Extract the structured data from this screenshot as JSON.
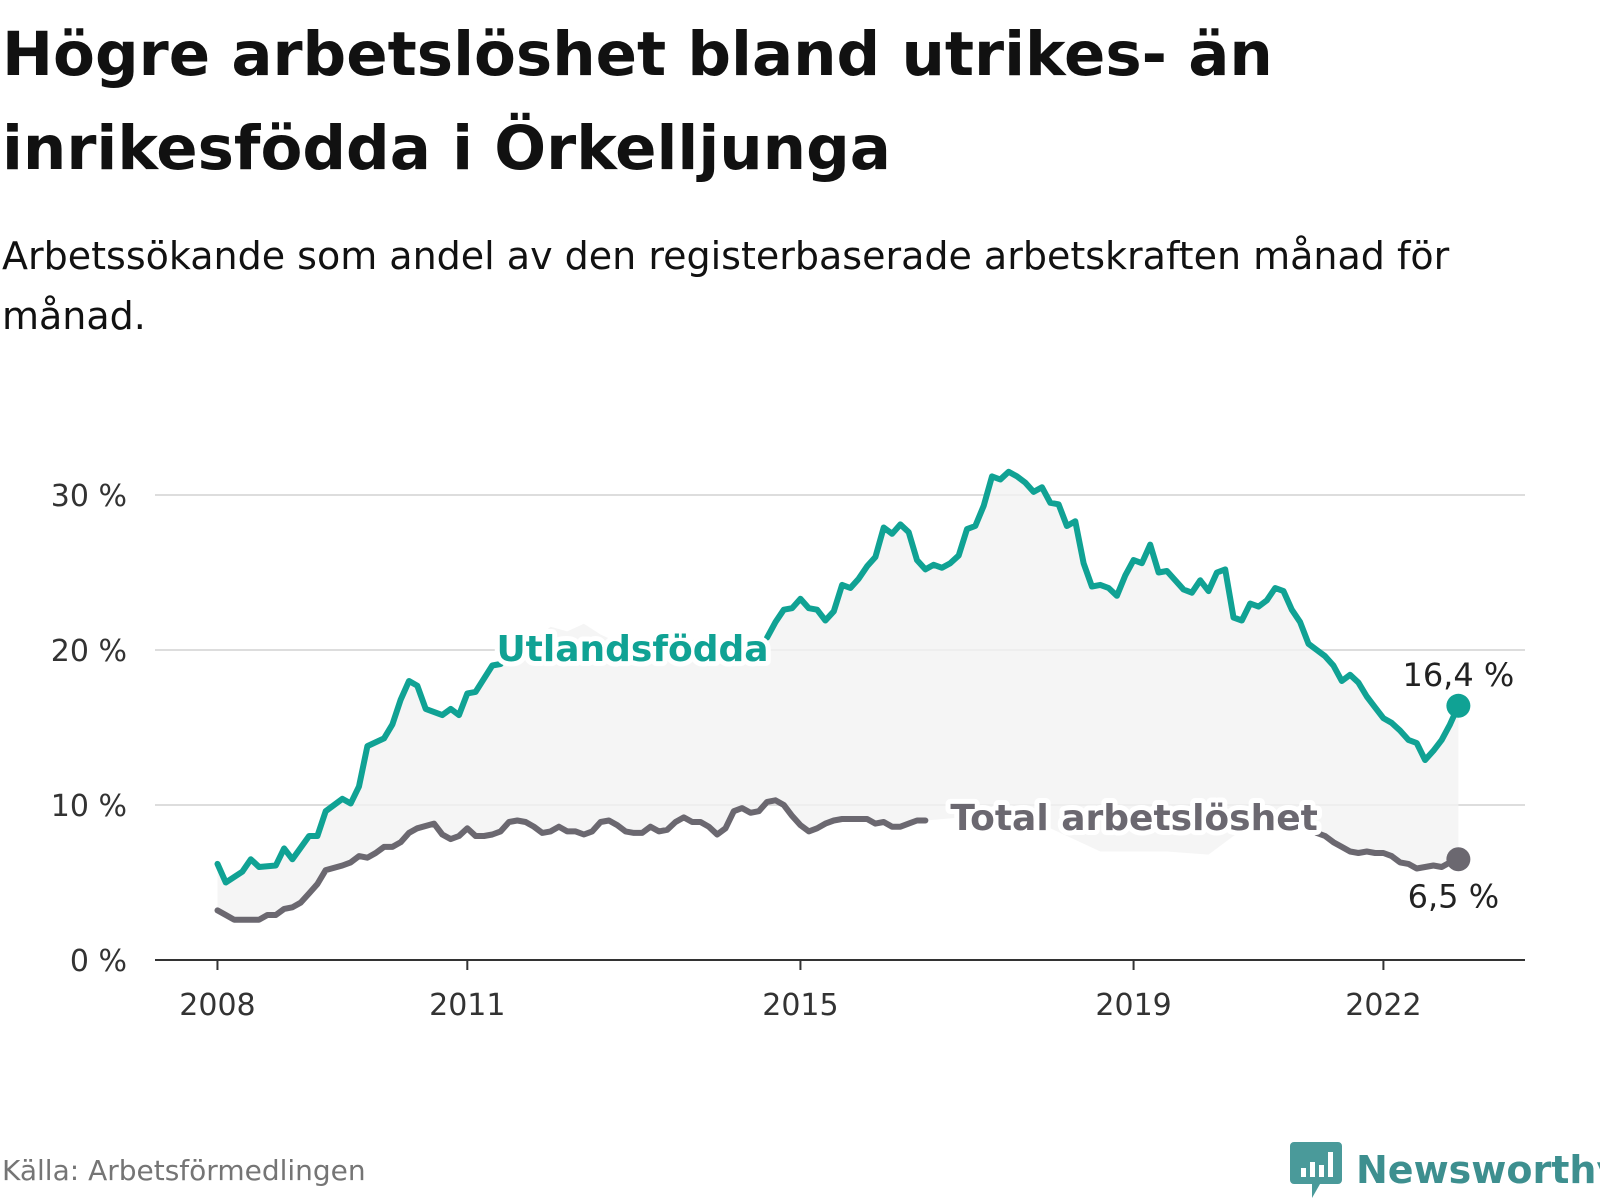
{
  "title": "Högre arbetslöshet bland utrikes- än inrikesfödda i Örkelljunga",
  "subtitle": "Arbetssökande som andel av den registerbaserade arbetskraften månad för månad.",
  "source": "Källa: Arbetsförmedlingen",
  "brand": {
    "name": "Newsworthy",
    "icon": "bar-chart-icon"
  },
  "colors": {
    "foreign": "#10a294",
    "total": "#6b6870",
    "area": "#f3f3f3",
    "grid": "#dddddd",
    "axis": "#333333"
  },
  "chart_data": {
    "type": "line",
    "title": "Högre arbetslöshet bland utrikes- än inrikesfödda i Örkelljunga",
    "ylabel": "Arbetssökande som andel av den registerbaserade arbetskraften (%)",
    "xlabel": "",
    "ylim": [
      0,
      30
    ],
    "yticks": [
      {
        "value": 0,
        "label": "0 %"
      },
      {
        "value": 10,
        "label": "10 %"
      },
      {
        "value": 20,
        "label": "20 %"
      },
      {
        "value": 30,
        "label": "30 %"
      }
    ],
    "xlim": [
      2007.25,
      2023.7
    ],
    "xticks": [
      {
        "value": 2008,
        "label": "2008"
      },
      {
        "value": 2011,
        "label": "2011"
      },
      {
        "value": 2015,
        "label": "2015"
      },
      {
        "value": 2019,
        "label": "2019"
      },
      {
        "value": 2022,
        "label": "2022"
      }
    ],
    "grid": true,
    "area_between_series": true,
    "series": [
      {
        "name": "Utlandsfödda",
        "color_key": "foreign",
        "label_at": [
          2011.35,
          19.3
        ],
        "end_label": "16,4 %",
        "points": [
          [
            2008.0,
            6.2
          ],
          [
            2008.1,
            5.0
          ],
          [
            2008.3,
            5.7
          ],
          [
            2008.4,
            6.5
          ],
          [
            2008.5,
            6.0
          ],
          [
            2008.7,
            6.1
          ],
          [
            2008.8,
            7.2
          ],
          [
            2008.9,
            6.5
          ],
          [
            2009.1,
            8.0
          ],
          [
            2009.2,
            8.0
          ],
          [
            2009.3,
            9.6
          ],
          [
            2009.5,
            10.4
          ],
          [
            2009.6,
            10.1
          ],
          [
            2009.7,
            11.2
          ],
          [
            2009.8,
            13.8
          ],
          [
            2010.0,
            14.3
          ],
          [
            2010.1,
            15.2
          ],
          [
            2010.2,
            16.8
          ],
          [
            2010.3,
            18.0
          ],
          [
            2010.4,
            17.7
          ],
          [
            2010.5,
            16.2
          ],
          [
            2010.7,
            15.8
          ],
          [
            2010.8,
            16.2
          ],
          [
            2010.9,
            15.8
          ],
          [
            2011.0,
            17.2
          ],
          [
            2011.1,
            17.3
          ],
          [
            2011.3,
            19.0
          ],
          [
            2011.4,
            19.1
          ],
          [
            2011.5,
            20.2
          ],
          [
            2011.6,
            19.8
          ]
        ],
        "points_b": [
          [
            2014.6,
            20.8
          ],
          [
            2014.7,
            21.8
          ],
          [
            2014.8,
            22.6
          ],
          [
            2014.9,
            22.7
          ],
          [
            2015.0,
            23.3
          ],
          [
            2015.1,
            22.7
          ],
          [
            2015.2,
            22.6
          ],
          [
            2015.3,
            21.9
          ],
          [
            2015.4,
            22.5
          ],
          [
            2015.5,
            24.2
          ],
          [
            2015.6,
            24.0
          ],
          [
            2015.7,
            24.6
          ],
          [
            2015.8,
            25.4
          ],
          [
            2015.9,
            26.0
          ],
          [
            2016.0,
            27.9
          ],
          [
            2016.1,
            27.5
          ],
          [
            2016.2,
            28.1
          ],
          [
            2016.3,
            27.6
          ],
          [
            2016.4,
            25.8
          ],
          [
            2016.5,
            25.2
          ],
          [
            2016.6,
            25.5
          ],
          [
            2016.7,
            25.3
          ],
          [
            2016.8,
            25.6
          ],
          [
            2016.9,
            26.1
          ],
          [
            2017.0,
            27.8
          ],
          [
            2017.1,
            28.0
          ],
          [
            2017.2,
            29.3
          ],
          [
            2017.3,
            31.2
          ],
          [
            2017.4,
            31.0
          ],
          [
            2017.5,
            31.5
          ],
          [
            2017.6,
            31.2
          ],
          [
            2017.7,
            30.8
          ],
          [
            2017.8,
            30.2
          ],
          [
            2017.9,
            30.5
          ],
          [
            2018.0,
            29.5
          ],
          [
            2018.1,
            29.4
          ],
          [
            2018.2,
            28.0
          ],
          [
            2018.3,
            28.3
          ],
          [
            2018.4,
            25.6
          ],
          [
            2018.5,
            24.1
          ],
          [
            2018.6,
            24.2
          ],
          [
            2018.7,
            24.0
          ],
          [
            2018.8,
            23.5
          ],
          [
            2018.9,
            24.8
          ],
          [
            2019.0,
            25.8
          ],
          [
            2019.1,
            25.6
          ],
          [
            2019.2,
            26.8
          ],
          [
            2019.3,
            25.0
          ],
          [
            2019.4,
            25.1
          ],
          [
            2019.5,
            24.5
          ],
          [
            2019.6,
            23.9
          ],
          [
            2019.7,
            23.7
          ],
          [
            2019.8,
            24.5
          ],
          [
            2019.9,
            23.8
          ],
          [
            2020.0,
            25.0
          ],
          [
            2020.1,
            25.2
          ],
          [
            2020.2,
            22.1
          ],
          [
            2020.3,
            21.9
          ],
          [
            2020.4,
            23.0
          ],
          [
            2020.5,
            22.8
          ],
          [
            2020.6,
            23.2
          ],
          [
            2020.7,
            24.0
          ],
          [
            2020.8,
            23.8
          ],
          [
            2020.9,
            22.6
          ],
          [
            2021.0,
            21.8
          ],
          [
            2021.1,
            20.4
          ],
          [
            2021.2,
            20.0
          ],
          [
            2021.3,
            19.6
          ],
          [
            2021.4,
            19.0
          ],
          [
            2021.5,
            18.0
          ],
          [
            2021.6,
            18.4
          ],
          [
            2021.7,
            17.9
          ],
          [
            2021.8,
            17.0
          ],
          [
            2021.9,
            16.3
          ],
          [
            2022.0,
            15.6
          ],
          [
            2022.1,
            15.3
          ],
          [
            2022.2,
            14.8
          ],
          [
            2022.3,
            14.2
          ],
          [
            2022.4,
            14.0
          ],
          [
            2022.5,
            12.9
          ],
          [
            2022.6,
            13.5
          ],
          [
            2022.7,
            14.2
          ],
          [
            2022.8,
            15.2
          ],
          [
            2022.9,
            16.4
          ]
        ],
        "partial_hidden_segment": [
          [
            2012.0,
            21.5
          ],
          [
            2012.2,
            21.2
          ],
          [
            2012.4,
            21.7
          ],
          [
            2012.6,
            21.0
          ],
          [
            2012.8,
            20.5
          ]
        ]
      },
      {
        "name": "Total arbetslöshet",
        "color_key": "total",
        "label_at": [
          2016.8,
          8.4
        ],
        "end_label": "6,5 %",
        "points": [
          [
            2008.0,
            3.2
          ],
          [
            2008.1,
            2.9
          ],
          [
            2008.2,
            2.6
          ],
          [
            2008.4,
            2.6
          ],
          [
            2008.5,
            2.6
          ],
          [
            2008.6,
            2.9
          ],
          [
            2008.7,
            2.9
          ],
          [
            2008.8,
            3.3
          ],
          [
            2008.9,
            3.4
          ],
          [
            2009.0,
            3.7
          ],
          [
            2009.1,
            4.3
          ],
          [
            2009.2,
            4.9
          ],
          [
            2009.3,
            5.8
          ],
          [
            2009.5,
            6.1
          ],
          [
            2009.6,
            6.3
          ],
          [
            2009.7,
            6.7
          ],
          [
            2009.8,
            6.6
          ],
          [
            2009.9,
            6.9
          ],
          [
            2010.0,
            7.3
          ],
          [
            2010.1,
            7.3
          ],
          [
            2010.2,
            7.6
          ],
          [
            2010.3,
            8.2
          ],
          [
            2010.4,
            8.5
          ],
          [
            2010.6,
            8.8
          ],
          [
            2010.7,
            8.1
          ],
          [
            2010.8,
            7.8
          ],
          [
            2010.9,
            8.0
          ],
          [
            2011.0,
            8.5
          ],
          [
            2011.1,
            8.0
          ],
          [
            2011.2,
            8.0
          ],
          [
            2011.3,
            8.1
          ],
          [
            2011.4,
            8.3
          ],
          [
            2011.5,
            8.9
          ],
          [
            2011.6,
            9.0
          ],
          [
            2011.7,
            8.9
          ],
          [
            2011.8,
            8.6
          ],
          [
            2011.9,
            8.2
          ],
          [
            2012.0,
            8.3
          ],
          [
            2012.1,
            8.6
          ],
          [
            2012.2,
            8.3
          ],
          [
            2012.3,
            8.3
          ],
          [
            2012.4,
            8.1
          ],
          [
            2012.5,
            8.3
          ],
          [
            2012.6,
            8.9
          ],
          [
            2012.7,
            9.0
          ],
          [
            2012.8,
            8.7
          ],
          [
            2012.9,
            8.3
          ],
          [
            2013.0,
            8.2
          ],
          [
            2013.1,
            8.2
          ],
          [
            2013.2,
            8.6
          ],
          [
            2013.3,
            8.3
          ],
          [
            2013.4,
            8.4
          ],
          [
            2013.5,
            8.9
          ],
          [
            2013.6,
            9.2
          ],
          [
            2013.7,
            8.9
          ],
          [
            2013.8,
            8.9
          ],
          [
            2013.9,
            8.6
          ],
          [
            2014.0,
            8.1
          ],
          [
            2014.1,
            8.5
          ],
          [
            2014.2,
            9.6
          ],
          [
            2014.3,
            9.8
          ],
          [
            2014.4,
            9.5
          ],
          [
            2014.5,
            9.6
          ],
          [
            2014.6,
            10.2
          ],
          [
            2014.7,
            10.3
          ],
          [
            2014.8,
            10.0
          ],
          [
            2014.9,
            9.3
          ],
          [
            2015.0,
            8.7
          ],
          [
            2015.1,
            8.3
          ],
          [
            2015.2,
            8.5
          ],
          [
            2015.3,
            8.8
          ],
          [
            2015.4,
            9.0
          ],
          [
            2015.5,
            9.1
          ],
          [
            2015.7,
            9.1
          ],
          [
            2015.8,
            9.1
          ],
          [
            2015.9,
            8.8
          ],
          [
            2016.0,
            8.9
          ],
          [
            2016.1,
            8.6
          ],
          [
            2016.2,
            8.6
          ],
          [
            2016.3,
            8.8
          ],
          [
            2016.4,
            9.0
          ],
          [
            2016.5,
            9.0
          ]
        ],
        "points_b": [
          [
            2020.4,
            8.8
          ],
          [
            2020.5,
            8.9
          ],
          [
            2020.6,
            9.1
          ],
          [
            2020.7,
            9.1
          ],
          [
            2020.8,
            9.0
          ],
          [
            2020.9,
            8.9
          ],
          [
            2021.0,
            8.6
          ],
          [
            2021.1,
            8.5
          ],
          [
            2021.2,
            8.2
          ],
          [
            2021.3,
            8.0
          ],
          [
            2021.4,
            7.6
          ],
          [
            2021.5,
            7.3
          ],
          [
            2021.6,
            7.0
          ],
          [
            2021.7,
            6.9
          ],
          [
            2021.8,
            7.0
          ],
          [
            2021.9,
            6.9
          ],
          [
            2022.0,
            6.9
          ],
          [
            2022.1,
            6.7
          ],
          [
            2022.2,
            6.3
          ],
          [
            2022.3,
            6.2
          ],
          [
            2022.4,
            5.9
          ],
          [
            2022.5,
            6.0
          ],
          [
            2022.6,
            6.1
          ],
          [
            2022.7,
            6.0
          ],
          [
            2022.8,
            6.3
          ],
          [
            2022.9,
            6.5
          ]
        ],
        "partial_hidden_segment": [
          [
            2017.6,
            9.5
          ],
          [
            2018.6,
            7.0
          ],
          [
            2019.4,
            7.0
          ],
          [
            2019.9,
            6.8
          ]
        ]
      }
    ]
  }
}
